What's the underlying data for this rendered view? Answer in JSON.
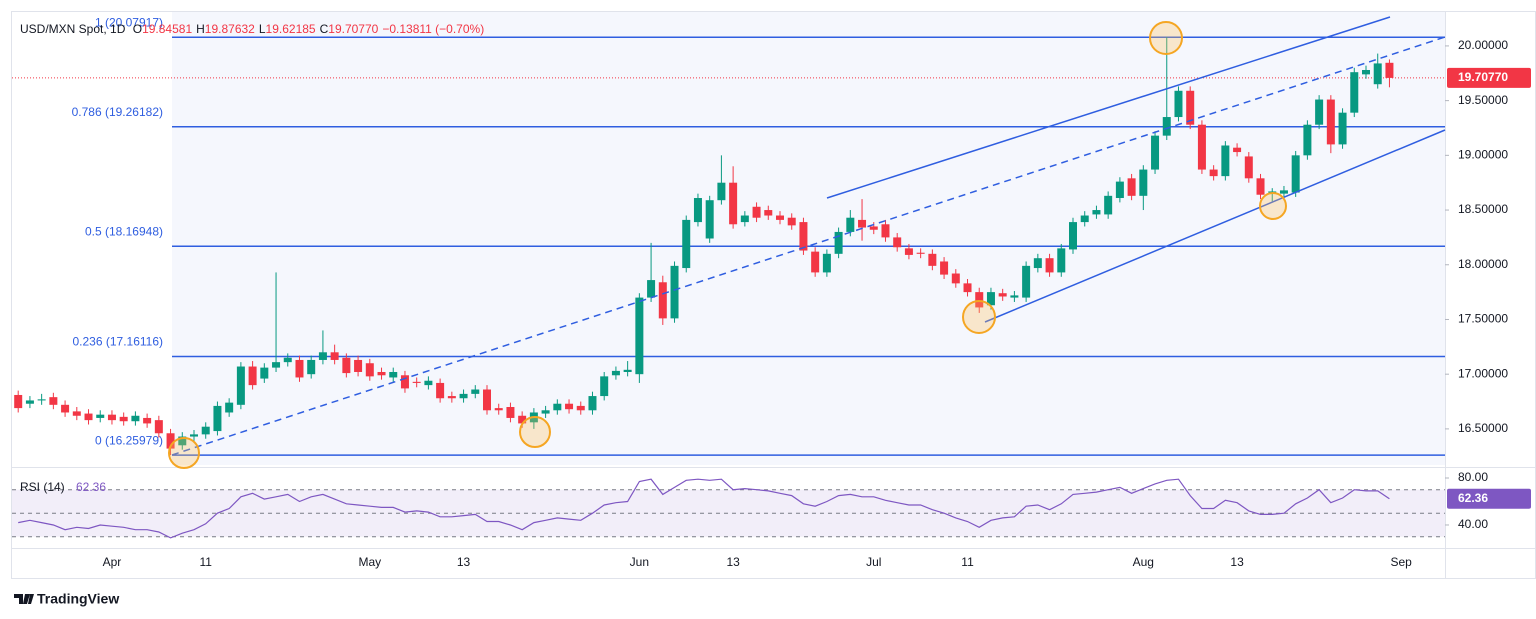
{
  "chart_data": [
    {
      "type": "candlestick",
      "title": "USD/MXN Spot, 1D",
      "ohlc": [
        [
          "O",
          "19.84581"
        ],
        [
          "H",
          "19.87632"
        ],
        [
          "L",
          "19.62185"
        ],
        [
          "C",
          "19.70770"
        ]
      ],
      "change": "−0.13811 (−0.70%)",
      "categories": [
        null,
        null,
        null,
        null,
        null,
        null,
        null,
        null,
        "Apr",
        null,
        null,
        null,
        null,
        null,
        null,
        null,
        "11",
        null,
        null,
        null,
        null,
        null,
        null,
        null,
        null,
        null,
        null,
        null,
        null,
        null,
        "May",
        null,
        null,
        null,
        null,
        null,
        null,
        null,
        "13",
        null,
        null,
        null,
        null,
        null,
        null,
        null,
        null,
        null,
        null,
        null,
        null,
        null,
        null,
        "Jun",
        null,
        null,
        null,
        null,
        null,
        null,
        null,
        "13",
        null,
        null,
        null,
        null,
        null,
        null,
        null,
        null,
        null,
        null,
        null,
        "Jul",
        null,
        null,
        null,
        null,
        null,
        null,
        null,
        "11",
        null,
        null,
        null,
        null,
        null,
        null,
        null,
        null,
        null,
        null,
        null,
        null,
        null,
        null,
        "Aug",
        null,
        null,
        null,
        null,
        null,
        null,
        null,
        "13",
        null,
        null,
        null,
        null,
        null,
        null,
        null,
        null,
        null,
        null,
        null,
        null,
        null,
        "Sep"
      ],
      "open": [
        16.81,
        16.73,
        16.76,
        16.79,
        16.72,
        16.66,
        16.64,
        16.6,
        16.63,
        16.61,
        16.57,
        16.6,
        16.58,
        16.46,
        16.35,
        16.43,
        16.45,
        16.48,
        16.65,
        16.72,
        17.07,
        16.96,
        17.06,
        17.11,
        17.13,
        17.0,
        17.13,
        17.2,
        17.15,
        17.13,
        17.1,
        17.02,
        16.97,
        16.99,
        16.93,
        16.9,
        16.92,
        16.8,
        16.78,
        16.82,
        16.86,
        16.69,
        16.7,
        16.62,
        16.56,
        16.64,
        16.67,
        16.73,
        16.71,
        16.67,
        16.8,
        16.99,
        17.02,
        17.0,
        17.7,
        17.84,
        17.51,
        17.97,
        18.39,
        18.24,
        18.59,
        18.75,
        18.39,
        18.53,
        18.5,
        18.45,
        18.43,
        18.39,
        18.12,
        17.93,
        18.1,
        18.3,
        18.41,
        18.35,
        18.37,
        18.25,
        18.15,
        18.11,
        18.1,
        18.03,
        17.92,
        17.83,
        17.75,
        17.63,
        17.74,
        17.7,
        17.7,
        17.97,
        18.06,
        17.93,
        18.14,
        18.39,
        18.46,
        18.46,
        18.61,
        18.79,
        18.63,
        18.87,
        19.18,
        19.35,
        19.59,
        19.28,
        18.87,
        18.81,
        19.07,
        18.99,
        18.79,
        18.66,
        18.65,
        18.66,
        19.0,
        19.28,
        19.51,
        19.1,
        19.39,
        19.74,
        19.65,
        19.84581,
        null
      ],
      "high": [
        16.85,
        16.8,
        16.82,
        16.83,
        16.76,
        16.7,
        16.68,
        16.67,
        16.67,
        16.65,
        16.66,
        16.64,
        16.62,
        16.5,
        16.47,
        16.49,
        16.56,
        16.75,
        16.78,
        17.11,
        17.12,
        17.1,
        17.93,
        17.19,
        17.17,
        17.17,
        17.4,
        17.27,
        17.19,
        17.17,
        17.14,
        17.06,
        17.06,
        17.03,
        16.97,
        16.98,
        16.96,
        16.84,
        16.86,
        16.9,
        16.9,
        16.73,
        16.74,
        16.66,
        16.69,
        16.71,
        16.77,
        16.77,
        16.75,
        16.84,
        17.02,
        17.07,
        17.12,
        17.74,
        18.2,
        17.9,
        18.03,
        18.45,
        18.65,
        18.63,
        19.0,
        18.9,
        18.49,
        18.57,
        18.54,
        18.49,
        18.47,
        18.43,
        18.16,
        18.14,
        18.34,
        18.5,
        18.6,
        18.39,
        18.41,
        18.29,
        18.19,
        18.15,
        18.14,
        18.07,
        17.96,
        17.87,
        17.79,
        17.79,
        17.78,
        17.76,
        18.03,
        18.1,
        18.1,
        18.19,
        18.43,
        18.49,
        18.54,
        18.67,
        18.8,
        18.83,
        18.91,
        19.22,
        20.08,
        19.63,
        19.63,
        19.32,
        18.91,
        19.13,
        19.11,
        19.03,
        18.83,
        18.7,
        18.72,
        19.04,
        19.32,
        19.55,
        19.55,
        19.43,
        19.8,
        19.82,
        19.93,
        19.87632,
        null
      ],
      "low": [
        16.65,
        16.69,
        16.72,
        16.68,
        16.61,
        16.58,
        16.54,
        16.56,
        16.54,
        16.53,
        16.53,
        16.51,
        16.42,
        16.26,
        16.31,
        16.39,
        16.41,
        16.44,
        16.61,
        16.68,
        16.86,
        16.92,
        17.02,
        17.07,
        16.93,
        16.96,
        17.09,
        17.09,
        16.97,
        16.98,
        16.94,
        16.95,
        16.93,
        16.83,
        16.88,
        16.86,
        16.74,
        16.74,
        16.74,
        16.78,
        16.63,
        16.63,
        16.56,
        16.51,
        16.5,
        16.6,
        16.63,
        16.64,
        16.63,
        16.63,
        16.76,
        16.95,
        16.98,
        16.92,
        17.66,
        17.45,
        17.47,
        17.93,
        18.35,
        18.2,
        18.55,
        18.33,
        18.35,
        18.39,
        18.41,
        18.37,
        18.32,
        18.09,
        17.89,
        17.89,
        18.06,
        18.26,
        18.22,
        18.28,
        18.21,
        18.12,
        18.05,
        18.06,
        17.95,
        17.87,
        17.79,
        17.71,
        17.56,
        17.59,
        17.67,
        17.66,
        17.66,
        17.93,
        17.89,
        17.89,
        18.1,
        18.35,
        18.42,
        18.42,
        18.57,
        18.59,
        18.5,
        18.83,
        19.14,
        19.31,
        19.24,
        18.83,
        18.77,
        18.77,
        18.99,
        18.75,
        18.6,
        18.58,
        18.61,
        18.62,
        18.96,
        19.24,
        19.02,
        19.06,
        19.35,
        19.7,
        19.61,
        19.62185,
        null
      ],
      "close": [
        16.69,
        16.76,
        16.77,
        16.72,
        16.65,
        16.62,
        16.58,
        16.63,
        16.58,
        16.57,
        16.62,
        16.55,
        16.46,
        16.32,
        16.43,
        16.45,
        16.52,
        16.71,
        16.74,
        17.07,
        16.9,
        17.06,
        17.11,
        17.15,
        16.97,
        17.13,
        17.2,
        17.13,
        17.01,
        17.02,
        16.98,
        16.99,
        17.02,
        16.87,
        16.92,
        16.94,
        16.78,
        16.78,
        16.82,
        16.86,
        16.67,
        16.67,
        16.6,
        16.55,
        16.65,
        16.67,
        16.73,
        16.68,
        16.67,
        16.8,
        16.98,
        17.03,
        17.04,
        17.7,
        17.86,
        17.51,
        17.99,
        18.41,
        18.61,
        18.59,
        18.75,
        18.37,
        18.45,
        18.43,
        18.45,
        18.41,
        18.36,
        18.13,
        17.93,
        18.1,
        18.3,
        18.43,
        18.34,
        18.32,
        18.25,
        18.16,
        18.09,
        18.1,
        17.99,
        17.91,
        17.83,
        17.75,
        17.61,
        17.75,
        17.71,
        17.72,
        17.99,
        18.06,
        17.93,
        18.15,
        18.39,
        18.45,
        18.5,
        18.63,
        18.76,
        18.63,
        18.87,
        19.18,
        19.35,
        19.59,
        19.28,
        18.87,
        18.81,
        19.09,
        19.03,
        18.79,
        18.64,
        18.67,
        18.68,
        19.0,
        19.28,
        19.51,
        19.1,
        19.39,
        19.76,
        19.78,
        19.84,
        19.7077,
        null
      ],
      "up_color": "#089981",
      "down_color": "#f23645",
      "ylim": [
        16.17,
        20.31
      ],
      "yticks": [
        {
          "value": 16.5,
          "label": "16.50000"
        },
        {
          "value": 17,
          "label": "17.00000"
        },
        {
          "value": 17.5,
          "label": "17.50000"
        },
        {
          "value": 18,
          "label": "18.00000"
        },
        {
          "value": 18.5,
          "label": "18.50000"
        },
        {
          "value": 19,
          "label": "19.00000"
        },
        {
          "value": 19.5,
          "label": "19.50000"
        },
        {
          "value": 20,
          "label": "20.00000"
        }
      ],
      "fib_levels": [
        {
          "value": 20.07917,
          "label": "1 (20.07917)"
        },
        {
          "value": 19.26182,
          "label": "0.786 (19.26182)"
        },
        {
          "value": 18.16948,
          "label": "0.5 (18.16948)"
        },
        {
          "value": 17.16116,
          "label": "0.236 (17.16116)"
        },
        {
          "value": 16.25979,
          "label": "0 (16.25979)"
        }
      ],
      "fib_color": "#2f5ee0",
      "last_value_label": "19.70770",
      "branding": "TradingView"
    },
    {
      "type": "line",
      "series": [
        {
          "name": "RSI (14)",
          "color": "#7e57c2",
          "values": [
            42,
            44,
            42,
            40,
            36,
            38,
            37,
            40,
            39,
            38,
            36,
            36,
            34,
            29,
            33,
            36,
            41,
            50,
            54,
            64,
            67,
            62,
            64,
            66,
            60,
            64,
            66,
            62,
            58,
            57,
            56,
            55,
            55,
            51,
            52,
            51,
            47,
            47,
            48,
            49,
            43,
            43,
            40,
            36,
            42,
            44,
            46,
            45,
            44,
            50,
            57,
            59,
            60,
            77,
            79,
            66,
            72,
            78,
            79,
            78,
            79,
            70,
            71,
            70,
            69,
            67,
            65,
            58,
            56,
            60,
            65,
            66,
            64,
            64,
            61,
            59,
            57,
            57,
            53,
            50,
            46,
            43,
            38,
            44,
            46,
            47,
            56,
            57,
            53,
            58,
            66,
            67,
            68,
            70,
            72,
            67,
            71,
            75,
            78,
            79,
            65,
            54,
            54,
            61,
            59,
            52,
            49,
            49,
            50,
            58,
            63,
            70,
            59,
            63,
            70,
            69,
            69,
            62.36,
            null
          ]
        }
      ],
      "ylim": [
        20.4,
        86.8
      ],
      "yticks": [
        {
          "value": 40,
          "label": "40.00"
        },
        {
          "value": 80,
          "label": "80.00"
        }
      ],
      "levels": [
        70,
        50,
        30
      ]
    }
  ]
}
